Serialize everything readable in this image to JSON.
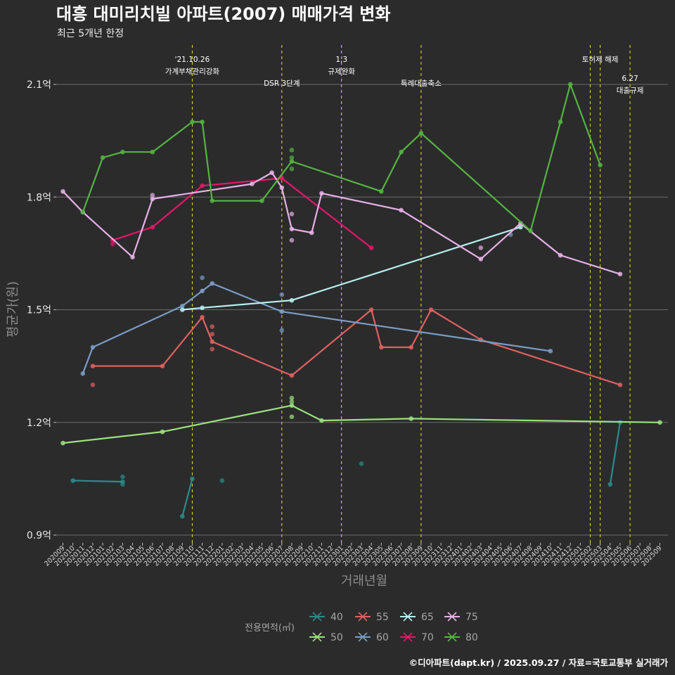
{
  "chart_data": {
    "type": "line",
    "title": "대흥 대미리치빌 아파트(2007) 매매가격 변화",
    "subtitle": "최근 5개년 한정",
    "xlabel": "거래년월",
    "ylabel": "평균가(원)",
    "caption": "©디아파트(dapt.kr) / 2025.09.27 / 자료=국토교통부 실거래가",
    "y_ticks": [
      {
        "value": 0.9,
        "label": "0.9억"
      },
      {
        "value": 1.2,
        "label": "1.2억"
      },
      {
        "value": 1.5,
        "label": "1.5억"
      },
      {
        "value": 1.8,
        "label": "1.8억"
      },
      {
        "value": 2.1,
        "label": "2.1억"
      }
    ],
    "ylim": [
      0.9,
      2.2
    ],
    "x_categories": [
      "202009",
      "202010",
      "202011",
      "202012",
      "202101",
      "202102",
      "202103",
      "202104",
      "202105",
      "202106",
      "202107",
      "202108",
      "202109",
      "202110",
      "202111",
      "202112",
      "202201",
      "202202",
      "202203",
      "202204",
      "202205",
      "202206",
      "202207",
      "202208",
      "202209",
      "202210",
      "202211",
      "202212",
      "202301",
      "202302",
      "202303",
      "202304",
      "202305",
      "202306",
      "202307",
      "202308",
      "202309",
      "202310",
      "202311",
      "202312",
      "202401",
      "202402",
      "202403",
      "202404",
      "202405",
      "202406",
      "202407",
      "202408",
      "202409",
      "202410",
      "202411",
      "202412",
      "202501",
      "202502",
      "202503",
      "202504",
      "202505",
      "202506",
      "202507",
      "202508",
      "202509"
    ],
    "legend": {
      "title": "전용면적(㎡)",
      "items": [
        {
          "label": "40",
          "color": "#2a8c8c"
        },
        {
          "label": "50",
          "color": "#9be27e"
        },
        {
          "label": "55",
          "color": "#e0605f"
        },
        {
          "label": "60",
          "color": "#7b9dc6"
        },
        {
          "label": "65",
          "color": "#b5f0ef"
        },
        {
          "label": "70",
          "color": "#e8156a"
        },
        {
          "label": "75",
          "color": "#e7b1e6"
        },
        {
          "label": "80",
          "color": "#55b441"
        }
      ]
    },
    "annotations": [
      {
        "x": "202110",
        "lines": [
          "'21.10.26",
          "가계부채관리강화"
        ],
        "row": 0
      },
      {
        "x": "202207",
        "lines": [
          "DSR 3단계"
        ],
        "row": 1
      },
      {
        "x": "202301",
        "lines": [
          "1.3",
          "규제완화"
        ],
        "row": 0
      },
      {
        "x": "202309",
        "lines": [
          "특례대출축소"
        ],
        "row": 1
      },
      {
        "x": "202502",
        "lines": [],
        "row": 0
      },
      {
        "x": "202503",
        "lines": [
          "토허제 해제"
        ],
        "row": 0
      },
      {
        "x": "202506",
        "lines": [
          "6.27",
          "대출규제"
        ],
        "row": 2
      }
    ],
    "series": [
      {
        "name": "40",
        "color": "#2a8c8c",
        "lines": [
          [
            [
              "202010",
              1.045
            ],
            [
              "202103",
              1.042
            ]
          ],
          [
            [
              "202109",
              0.95
            ],
            [
              "202110",
              1.05
            ]
          ],
          [
            [
              "202504",
              1.035
            ],
            [
              "202505",
              1.2
            ]
          ]
        ],
        "points": [
          [
            "202103",
            1.055
          ],
          [
            "202103",
            1.035
          ],
          [
            "202201",
            1.045
          ],
          [
            "202303",
            1.09
          ]
        ]
      },
      {
        "name": "50",
        "color": "#9be27e",
        "lines": [
          [
            [
              "202009",
              1.145
            ],
            [
              "202107",
              1.175
            ],
            [
              "202208",
              1.245
            ],
            [
              "202211",
              1.205
            ],
            [
              "202308",
              1.21
            ],
            [
              "202509",
              1.2
            ]
          ]
        ],
        "points": [
          [
            "202208",
            1.265
          ],
          [
            "202208",
            1.255
          ],
          [
            "202208",
            1.215
          ]
        ]
      },
      {
        "name": "55",
        "color": "#e0605f",
        "lines": [
          [
            [
              "202012",
              1.35
            ],
            [
              "202107",
              1.35
            ],
            [
              "202111",
              1.48
            ],
            [
              "202112",
              1.415
            ],
            [
              "202208",
              1.325
            ],
            [
              "202304",
              1.5
            ],
            [
              "202305",
              1.4
            ],
            [
              "202308",
              1.4
            ],
            [
              "202310",
              1.5
            ],
            [
              "202403",
              1.42
            ],
            [
              "202505",
              1.3
            ]
          ]
        ],
        "points": [
          [
            "202012",
            1.3
          ],
          [
            "202112",
            1.455
          ],
          [
            "202112",
            1.435
          ],
          [
            "202112",
            1.395
          ]
        ]
      },
      {
        "name": "60",
        "color": "#7b9dc6",
        "lines": [
          [
            [
              "202011",
              1.33
            ],
            [
              "202012",
              1.4
            ],
            [
              "202109",
              1.51
            ],
            [
              "202111",
              1.55
            ],
            [
              "202112",
              1.57
            ],
            [
              "202207",
              1.495
            ],
            [
              "202410",
              1.39
            ]
          ]
        ],
        "points": [
          [
            "202111",
            1.585
          ],
          [
            "202207",
            1.54
          ],
          [
            "202207",
            1.445
          ],
          [
            "202406",
            1.7
          ]
        ]
      },
      {
        "name": "65",
        "color": "#b5f0ef",
        "lines": [
          [
            [
              "202109",
              1.5
            ],
            [
              "202111",
              1.505
            ],
            [
              "202208",
              1.525
            ],
            [
              "202407",
              1.72
            ]
          ]
        ],
        "points": []
      },
      {
        "name": "70",
        "color": "#e8156a",
        "lines": [
          [
            [
              "202102",
              1.685
            ],
            [
              "202106",
              1.72
            ],
            [
              "202111",
              1.83
            ],
            [
              "202207",
              1.85
            ],
            [
              "202304",
              1.665
            ]
          ]
        ],
        "points": [
          [
            "202102",
            1.675
          ]
        ]
      },
      {
        "name": "75",
        "color": "#e7b1e6",
        "lines": [
          [
            [
              "202009",
              1.815
            ],
            [
              "202011",
              1.76
            ],
            [
              "202104",
              1.64
            ],
            [
              "202106",
              1.795
            ],
            [
              "202204",
              1.835
            ],
            [
              "202206",
              1.865
            ],
            [
              "202207",
              1.825
            ],
            [
              "202208",
              1.715
            ],
            [
              "202210",
              1.705
            ],
            [
              "202211",
              1.81
            ],
            [
              "202307",
              1.765
            ],
            [
              "202403",
              1.635
            ],
            [
              "202407",
              1.73
            ],
            [
              "202411",
              1.645
            ],
            [
              "202505",
              1.595
            ]
          ]
        ],
        "points": [
          [
            "202106",
            1.805
          ],
          [
            "202208",
            1.755
          ],
          [
            "202208",
            1.685
          ],
          [
            "202403",
            1.665
          ]
        ]
      },
      {
        "name": "80",
        "color": "#55b441",
        "lines": [
          [
            [
              "202011",
              1.76
            ],
            [
              "202101",
              1.905
            ],
            [
              "202103",
              1.92
            ],
            [
              "202106",
              1.92
            ],
            [
              "202110",
              2.0
            ],
            [
              "202111",
              2.0
            ],
            [
              "202112",
              1.79
            ],
            [
              "202205",
              1.79
            ],
            [
              "202208",
              1.895
            ],
            [
              "202305",
              1.815
            ],
            [
              "202307",
              1.92
            ],
            [
              "202309",
              1.97
            ],
            [
              "202408",
              1.71
            ],
            [
              "202411",
              2.0
            ],
            [
              "202412",
              2.1
            ],
            [
              "202503",
              1.885
            ]
          ]
        ],
        "points": [
          [
            "202208",
            1.925
          ],
          [
            "202208",
            1.905
          ],
          [
            "202208",
            1.875
          ]
        ]
      }
    ]
  }
}
